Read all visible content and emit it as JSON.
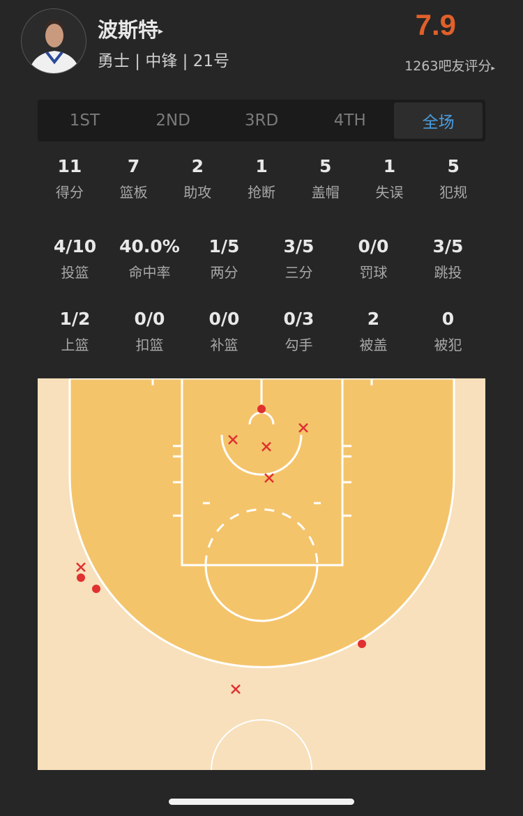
{
  "player": {
    "name": "波斯特",
    "info": "勇士 | 中锋 | 21号",
    "rating": "7.9",
    "raters": "1263吧友评分",
    "arrow": "▸"
  },
  "tabs": [
    {
      "label": "1ST"
    },
    {
      "label": "2ND"
    },
    {
      "label": "3RD"
    },
    {
      "label": "4TH"
    },
    {
      "label": "全场",
      "active": true
    }
  ],
  "stats_row1": [
    {
      "v": "11",
      "l": "得分"
    },
    {
      "v": "7",
      "l": "篮板"
    },
    {
      "v": "2",
      "l": "助攻"
    },
    {
      "v": "1",
      "l": "抢断"
    },
    {
      "v": "5",
      "l": "盖帽"
    },
    {
      "v": "1",
      "l": "失误"
    },
    {
      "v": "5",
      "l": "犯规"
    }
  ],
  "stats_row2": [
    {
      "v": "4/10",
      "l": "投篮"
    },
    {
      "v": "40.0%",
      "l": "命中率"
    },
    {
      "v": "1/5",
      "l": "两分"
    },
    {
      "v": "3/5",
      "l": "三分"
    },
    {
      "v": "0/0",
      "l": "罚球"
    },
    {
      "v": "3/5",
      "l": "跳投"
    }
  ],
  "stats_row3": [
    {
      "v": "1/2",
      "l": "上篮"
    },
    {
      "v": "0/0",
      "l": "扣篮"
    },
    {
      "v": "0/0",
      "l": "补篮"
    },
    {
      "v": "0/3",
      "l": "勾手"
    },
    {
      "v": "2",
      "l": "被盖"
    },
    {
      "v": "0",
      "l": "被犯"
    }
  ],
  "shot_chart": {
    "made_marker": "dot",
    "missed_marker": "x",
    "marker_color": "#e03030",
    "shots": [
      "made",
      "made",
      "made",
      "made",
      "missed",
      "missed",
      "missed",
      "missed",
      "missed",
      "missed"
    ]
  },
  "colors": {
    "rating": "#e0602a",
    "active_tab": "#4a9de0",
    "paint": "#f4c46b",
    "court": "#f7e0bb"
  }
}
